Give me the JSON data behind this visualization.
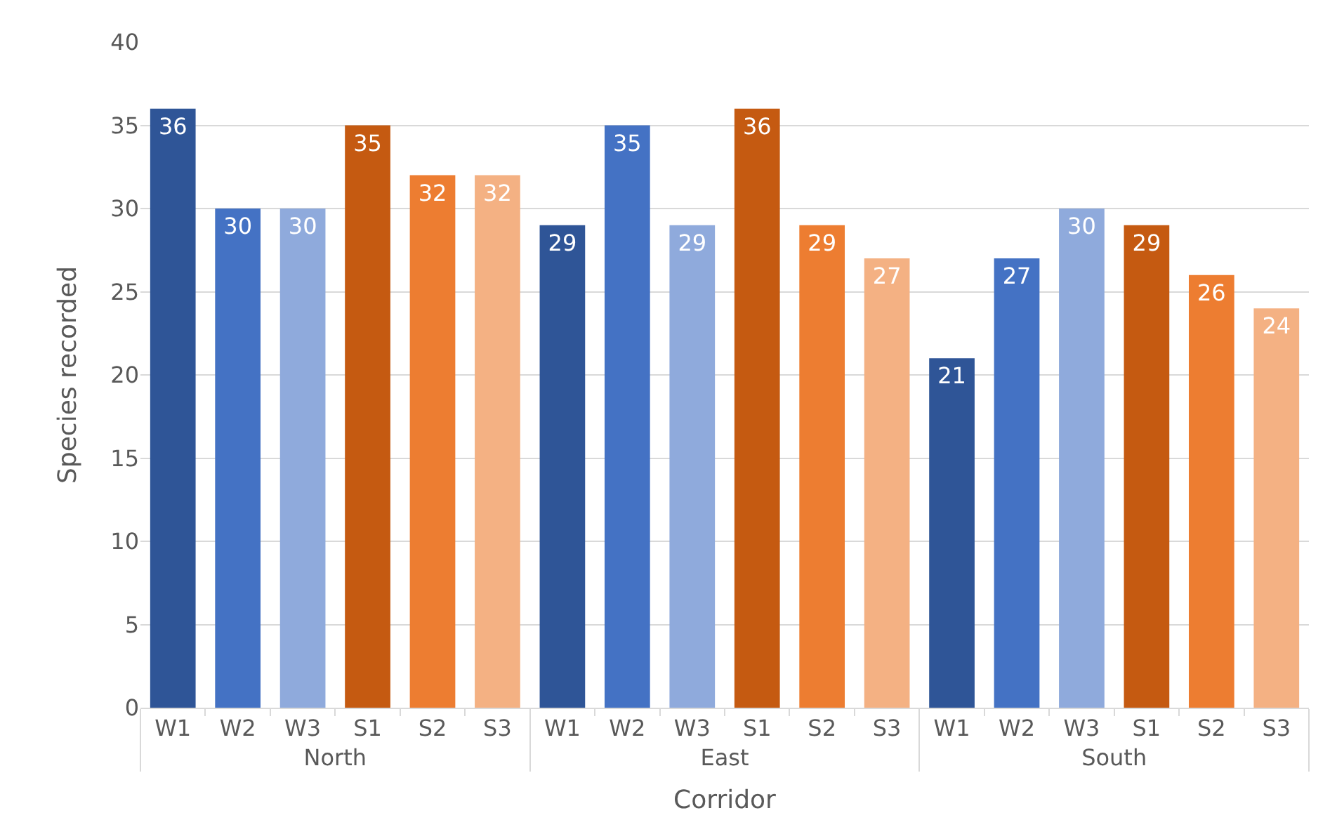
{
  "chart_data": {
    "type": "bar",
    "xlabel": "Corridor",
    "ylabel": "Species recorded",
    "categories": [
      "W1",
      "W2",
      "W3",
      "S1",
      "S2",
      "S3",
      "W1",
      "W2",
      "W3",
      "S1",
      "S2",
      "S3",
      "W1",
      "W2",
      "W3",
      "S1",
      "S2",
      "S3"
    ],
    "values": [
      36,
      30,
      30,
      35,
      32,
      32,
      29,
      35,
      29,
      36,
      29,
      27,
      21,
      27,
      30,
      29,
      26,
      24
    ],
    "colors": [
      "#2f5597",
      "#4472c4",
      "#8faadc",
      "#c55a11",
      "#ed7d31",
      "#f4b183",
      "#2f5597",
      "#4472c4",
      "#8faadc",
      "#c55a11",
      "#ed7d31",
      "#f4b183",
      "#2f5597",
      "#4472c4",
      "#8faadc",
      "#c55a11",
      "#ed7d31",
      "#f4b183"
    ],
    "annotations": [
      "North",
      "East",
      "South"
    ],
    "ylim": [
      0,
      40
    ],
    "yticks": [
      0,
      5,
      10,
      15,
      20,
      25,
      30,
      35,
      40
    ],
    "grid": "y",
    "data_labels": true
  }
}
